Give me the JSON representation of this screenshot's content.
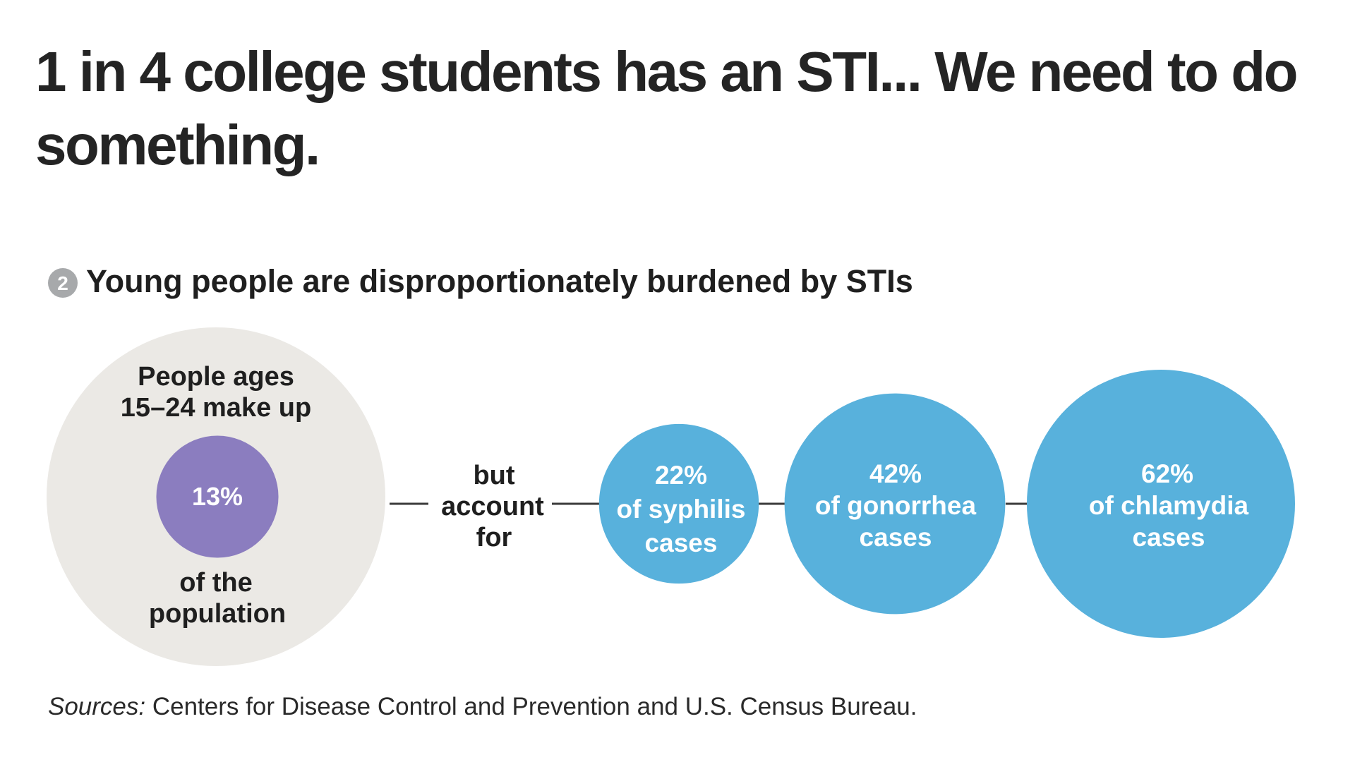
{
  "page": {
    "headline": "1 in 4 college students has an STI... We need to do something."
  },
  "chart_data": {
    "type": "bubble",
    "title_number": "2",
    "title": "Young people are disproportionately burdened by STIs",
    "population": {
      "label_top_line1": "People ages",
      "label_top_line2": "15–24 make up",
      "value": 13,
      "value_label": "13%",
      "label_bottom_line1": "of the",
      "label_bottom_line2": "population"
    },
    "connector": {
      "line1": "but",
      "line2": "account",
      "line3": "for"
    },
    "series": [
      {
        "name": "syphilis",
        "value": 22,
        "value_label": "22%",
        "line1": "of syphilis",
        "line2": "cases"
      },
      {
        "name": "gonorrhea",
        "value": 42,
        "value_label": "42%",
        "line1": "of gonorrhea",
        "line2": "cases"
      },
      {
        "name": "chlamydia",
        "value": 62,
        "value_label": "62%",
        "line1": "of chlamydia",
        "line2": "cases"
      }
    ],
    "colors": {
      "population_circle": "#ebe9e5",
      "population_inner": "#8b7dbf",
      "case_circle": "#58b1dc",
      "badge": "#a7a9ab",
      "connector_line": "#3a3a3a"
    },
    "sources_label": "Sources:",
    "sources_text": " Centers for Disease Control and Prevention and U.S. Census Bureau."
  }
}
